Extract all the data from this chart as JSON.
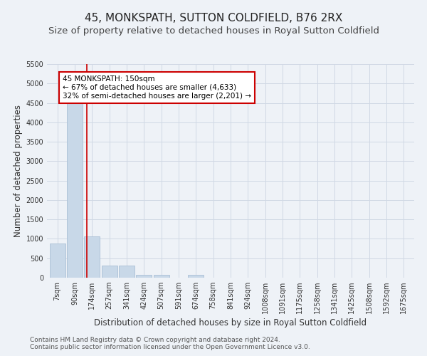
{
  "title": "45, MONKSPATH, SUTTON COLDFIELD, B76 2RX",
  "subtitle": "Size of property relative to detached houses in Royal Sutton Coldfield",
  "xlabel": "Distribution of detached houses by size in Royal Sutton Coldfield",
  "ylabel": "Number of detached properties",
  "footer_line1": "Contains HM Land Registry data © Crown copyright and database right 2024.",
  "footer_line2": "Contains public sector information licensed under the Open Government Licence v3.0.",
  "categories": [
    "7sqm",
    "90sqm",
    "174sqm",
    "257sqm",
    "341sqm",
    "424sqm",
    "507sqm",
    "591sqm",
    "674sqm",
    "758sqm",
    "841sqm",
    "924sqm",
    "1008sqm",
    "1091sqm",
    "1175sqm",
    "1258sqm",
    "1341sqm",
    "1425sqm",
    "1508sqm",
    "1592sqm",
    "1675sqm"
  ],
  "values": [
    880,
    4560,
    1060,
    310,
    310,
    70,
    65,
    0,
    65,
    0,
    0,
    0,
    0,
    0,
    0,
    0,
    0,
    0,
    0,
    0,
    0
  ],
  "bar_color": "#c8d8e8",
  "bar_edge_color": "#a0b8d0",
  "annotation_text": "45 MONKSPATH: 150sqm\n← 67% of detached houses are smaller (4,633)\n32% of semi-detached houses are larger (2,201) →",
  "annotation_box_color": "#ffffff",
  "annotation_box_edge": "#cc0000",
  "vline_x": 1.72,
  "vline_color": "#cc0000",
  "ylim": [
    0,
    5500
  ],
  "yticks": [
    0,
    500,
    1000,
    1500,
    2000,
    2500,
    3000,
    3500,
    4000,
    4500,
    5000,
    5500
  ],
  "grid_color": "#d0d8e4",
  "background_color": "#eef2f7",
  "title_fontsize": 11,
  "subtitle_fontsize": 9.5,
  "label_fontsize": 8.5,
  "tick_fontsize": 7,
  "footer_fontsize": 6.5,
  "annotation_fontsize": 7.5
}
